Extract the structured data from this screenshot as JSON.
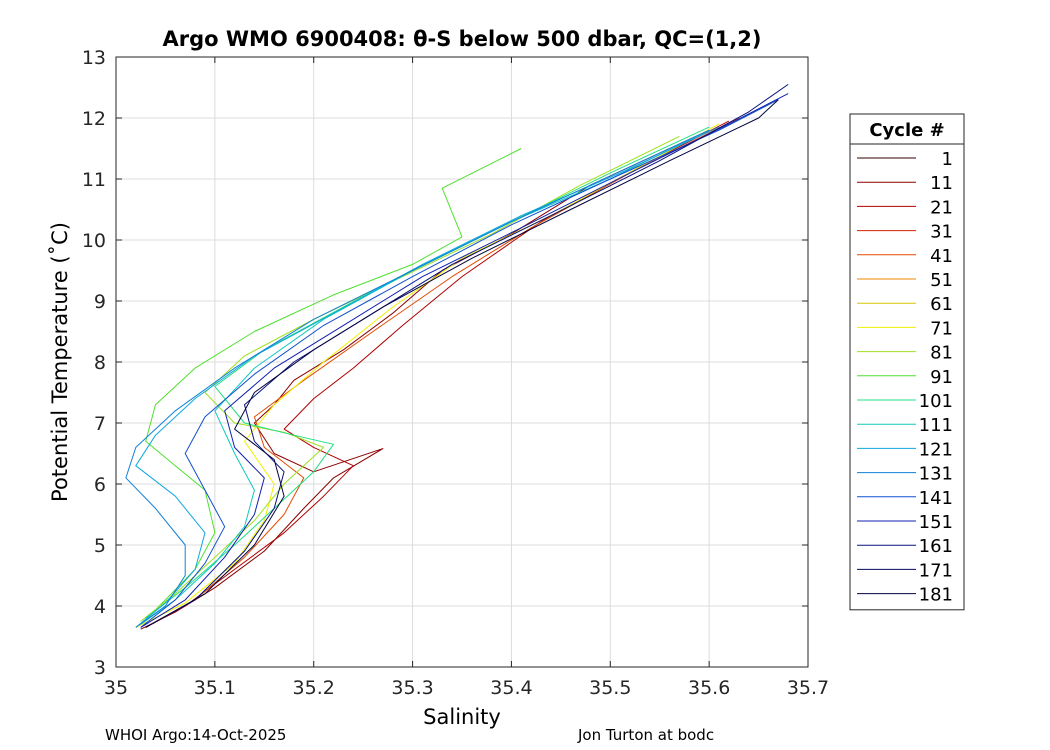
{
  "chart_data": {
    "type": "line",
    "title": "Argo WMO 6900408: θ-S below 500 dbar,  QC=(1,2)",
    "xlabel": "Salinity",
    "ylabel": "Potential Temperature (˚C)",
    "xlim": [
      35,
      35.7
    ],
    "ylim": [
      3,
      13
    ],
    "xticks": [
      "35",
      "35.1",
      "35.2",
      "35.3",
      "35.4",
      "35.5",
      "35.6",
      "35.7"
    ],
    "yticks": [
      "3",
      "4",
      "5",
      "6",
      "7",
      "8",
      "9",
      "10",
      "11",
      "12",
      "13"
    ],
    "grid": true,
    "legend": {
      "title": "Cycle #",
      "placement": "right",
      "entries": [
        {
          "label": "1",
          "color": "#3a0000"
        },
        {
          "label": "11",
          "color": "#8b0000"
        },
        {
          "label": "21",
          "color": "#b00000"
        },
        {
          "label": "31",
          "color": "#d42000"
        },
        {
          "label": "41",
          "color": "#e24a00"
        },
        {
          "label": "51",
          "color": "#e88a00"
        },
        {
          "label": "61",
          "color": "#d8c800"
        },
        {
          "label": "71",
          "color": "#f0f000"
        },
        {
          "label": "81",
          "color": "#a0e020"
        },
        {
          "label": "91",
          "color": "#50e030"
        },
        {
          "label": "101",
          "color": "#20e080"
        },
        {
          "label": "111",
          "color": "#10c8c0"
        },
        {
          "label": "121",
          "color": "#10a8e0"
        },
        {
          "label": "131",
          "color": "#1080d8"
        },
        {
          "label": "141",
          "color": "#1050d0"
        },
        {
          "label": "151",
          "color": "#1020b0"
        },
        {
          "label": "161",
          "color": "#081080"
        },
        {
          "label": "171",
          "color": "#050a60"
        },
        {
          "label": "181",
          "color": "#030540"
        }
      ]
    },
    "series": [
      {
        "color": "#8b0000",
        "points": [
          [
            35.025,
            3.62
          ],
          [
            35.06,
            3.9
          ],
          [
            35.1,
            4.3
          ],
          [
            35.15,
            4.9
          ],
          [
            35.19,
            5.6
          ],
          [
            35.22,
            6.1
          ],
          [
            35.27,
            6.58
          ],
          [
            35.2,
            6.2
          ],
          [
            35.16,
            6.5
          ],
          [
            35.14,
            7.0
          ],
          [
            35.16,
            7.3
          ],
          [
            35.18,
            7.7
          ],
          [
            35.23,
            8.2
          ],
          [
            35.28,
            8.8
          ],
          [
            35.33,
            9.5
          ],
          [
            35.4,
            10.1
          ],
          [
            35.48,
            10.9
          ],
          [
            35.6,
            11.8
          ]
        ]
      },
      {
        "color": "#b00000",
        "points": [
          [
            35.03,
            3.65
          ],
          [
            35.07,
            4.0
          ],
          [
            35.12,
            4.6
          ],
          [
            35.17,
            5.2
          ],
          [
            35.21,
            5.8
          ],
          [
            35.24,
            6.3
          ],
          [
            35.2,
            6.6
          ],
          [
            35.17,
            6.9
          ],
          [
            35.2,
            7.4
          ],
          [
            35.24,
            7.9
          ],
          [
            35.29,
            8.6
          ],
          [
            35.35,
            9.4
          ],
          [
            35.43,
            10.3
          ],
          [
            35.53,
            11.2
          ],
          [
            35.62,
            11.95
          ]
        ]
      },
      {
        "color": "#e24a00",
        "points": [
          [
            35.035,
            3.7
          ],
          [
            35.08,
            4.1
          ],
          [
            35.13,
            4.8
          ],
          [
            35.17,
            5.5
          ],
          [
            35.19,
            6.1
          ],
          [
            35.15,
            6.6
          ],
          [
            35.14,
            7.1
          ],
          [
            35.19,
            7.7
          ],
          [
            35.26,
            8.5
          ],
          [
            35.34,
            9.4
          ],
          [
            35.42,
            10.2
          ],
          [
            35.52,
            11.1
          ],
          [
            35.63,
            12.0
          ]
        ]
      },
      {
        "color": "#f0f000",
        "points": [
          [
            35.02,
            3.65
          ],
          [
            35.07,
            4.05
          ],
          [
            35.12,
            4.7
          ],
          [
            35.15,
            5.4
          ],
          [
            35.16,
            6.0
          ],
          [
            35.13,
            6.7
          ],
          [
            35.16,
            7.3
          ],
          [
            35.21,
            8.0
          ],
          [
            35.28,
            8.9
          ],
          [
            35.35,
            9.7
          ],
          [
            35.44,
            10.4
          ],
          [
            35.53,
            11.2
          ],
          [
            35.61,
            11.9
          ]
        ]
      },
      {
        "color": "#50e030",
        "points": [
          [
            35.41,
            11.5
          ],
          [
            35.33,
            10.85
          ],
          [
            35.35,
            10.05
          ],
          [
            35.3,
            9.6
          ],
          [
            35.22,
            9.1
          ],
          [
            35.14,
            8.5
          ],
          [
            35.08,
            7.9
          ],
          [
            35.04,
            7.3
          ],
          [
            35.03,
            6.7
          ],
          [
            35.06,
            6.3
          ],
          [
            35.09,
            5.9
          ],
          [
            35.1,
            5.2
          ],
          [
            35.08,
            4.6
          ],
          [
            35.05,
            4.1
          ],
          [
            35.025,
            3.7
          ]
        ]
      },
      {
        "color": "#a0e020",
        "points": [
          [
            35.025,
            3.75
          ],
          [
            35.06,
            4.2
          ],
          [
            35.1,
            4.8
          ],
          [
            35.14,
            5.4
          ],
          [
            35.17,
            6.0
          ],
          [
            35.21,
            6.6
          ],
          [
            35.17,
            6.85
          ],
          [
            35.12,
            7.0
          ],
          [
            35.09,
            7.5
          ],
          [
            35.13,
            8.1
          ],
          [
            35.2,
            8.7
          ],
          [
            35.29,
            9.4
          ],
          [
            35.38,
            10.1
          ],
          [
            35.47,
            10.9
          ],
          [
            35.57,
            11.7
          ]
        ]
      },
      {
        "color": "#20e080",
        "points": [
          [
            35.03,
            3.8
          ],
          [
            35.07,
            4.3
          ],
          [
            35.12,
            5.0
          ],
          [
            35.16,
            5.6
          ],
          [
            35.2,
            6.2
          ],
          [
            35.22,
            6.65
          ],
          [
            35.18,
            6.8
          ],
          [
            35.13,
            7.0
          ],
          [
            35.1,
            7.6
          ],
          [
            35.15,
            8.2
          ],
          [
            35.23,
            8.9
          ],
          [
            35.31,
            9.6
          ],
          [
            35.4,
            10.3
          ],
          [
            35.5,
            11.1
          ],
          [
            35.6,
            11.85
          ]
        ]
      },
      {
        "color": "#10c8c0",
        "points": [
          [
            35.025,
            3.7
          ],
          [
            35.06,
            4.1
          ],
          [
            35.1,
            4.7
          ],
          [
            35.13,
            5.3
          ],
          [
            35.14,
            5.9
          ],
          [
            35.12,
            6.5
          ],
          [
            35.1,
            7.2
          ],
          [
            35.14,
            7.9
          ],
          [
            35.21,
            8.7
          ],
          [
            35.3,
            9.5
          ],
          [
            35.4,
            10.3
          ],
          [
            35.5,
            11.0
          ],
          [
            35.6,
            11.8
          ]
        ]
      },
      {
        "color": "#10a8e0",
        "points": [
          [
            35.02,
            3.65
          ],
          [
            35.05,
            4.05
          ],
          [
            35.08,
            4.6
          ],
          [
            35.09,
            5.2
          ],
          [
            35.06,
            5.8
          ],
          [
            35.02,
            6.3
          ],
          [
            35.04,
            6.8
          ],
          [
            35.08,
            7.4
          ],
          [
            35.14,
            8.1
          ],
          [
            35.22,
            8.8
          ],
          [
            35.31,
            9.6
          ],
          [
            35.41,
            10.4
          ],
          [
            35.51,
            11.1
          ],
          [
            35.61,
            11.85
          ]
        ]
      },
      {
        "color": "#1080d8",
        "points": [
          [
            35.02,
            3.65
          ],
          [
            35.05,
            4.0
          ],
          [
            35.07,
            4.5
          ],
          [
            35.07,
            5.0
          ],
          [
            35.04,
            5.6
          ],
          [
            35.01,
            6.1
          ],
          [
            35.02,
            6.6
          ],
          [
            35.06,
            7.2
          ],
          [
            35.12,
            7.9
          ],
          [
            35.2,
            8.7
          ],
          [
            35.3,
            9.5
          ],
          [
            35.4,
            10.3
          ],
          [
            35.5,
            11.05
          ],
          [
            35.6,
            11.8
          ]
        ]
      },
      {
        "color": "#1050d0",
        "points": [
          [
            35.025,
            3.65
          ],
          [
            35.06,
            4.1
          ],
          [
            35.09,
            4.7
          ],
          [
            35.11,
            5.3
          ],
          [
            35.09,
            5.9
          ],
          [
            35.07,
            6.5
          ],
          [
            35.09,
            7.1
          ],
          [
            35.14,
            7.8
          ],
          [
            35.21,
            8.6
          ],
          [
            35.3,
            9.4
          ],
          [
            35.4,
            10.25
          ],
          [
            35.5,
            11.0
          ],
          [
            35.61,
            11.8
          ],
          [
            35.67,
            12.3
          ]
        ]
      },
      {
        "color": "#1020b0",
        "points": [
          [
            35.025,
            3.65
          ],
          [
            35.07,
            4.1
          ],
          [
            35.11,
            4.8
          ],
          [
            35.14,
            5.5
          ],
          [
            35.15,
            6.1
          ],
          [
            35.12,
            6.6
          ],
          [
            35.11,
            7.2
          ],
          [
            35.16,
            7.9
          ],
          [
            35.23,
            8.6
          ],
          [
            35.31,
            9.4
          ],
          [
            35.41,
            10.2
          ],
          [
            35.52,
            11.1
          ],
          [
            35.62,
            11.9
          ],
          [
            35.68,
            12.4
          ]
        ]
      },
      {
        "color": "#081080",
        "points": [
          [
            35.03,
            3.65
          ],
          [
            35.08,
            4.1
          ],
          [
            35.13,
            4.9
          ],
          [
            35.16,
            5.6
          ],
          [
            35.17,
            6.2
          ],
          [
            35.14,
            6.7
          ],
          [
            35.13,
            7.3
          ],
          [
            35.18,
            8.0
          ],
          [
            35.26,
            8.8
          ],
          [
            35.34,
            9.6
          ],
          [
            35.44,
            10.4
          ],
          [
            35.55,
            11.3
          ],
          [
            35.64,
            12.1
          ],
          [
            35.68,
            12.55
          ]
        ]
      },
      {
        "color": "#030540",
        "points": [
          [
            35.03,
            3.65
          ],
          [
            35.09,
            4.2
          ],
          [
            35.14,
            5.0
          ],
          [
            35.17,
            5.8
          ],
          [
            35.16,
            6.4
          ],
          [
            35.12,
            6.9
          ],
          [
            35.14,
            7.5
          ],
          [
            35.2,
            8.2
          ],
          [
            35.27,
            8.9
          ],
          [
            35.36,
            9.7
          ],
          [
            35.46,
            10.5
          ],
          [
            35.56,
            11.3
          ],
          [
            35.65,
            12.0
          ],
          [
            35.67,
            12.3
          ]
        ]
      }
    ]
  },
  "footer": {
    "left": "WHOI Argo:14-Oct-2025",
    "right": "Jon Turton at bodc"
  }
}
